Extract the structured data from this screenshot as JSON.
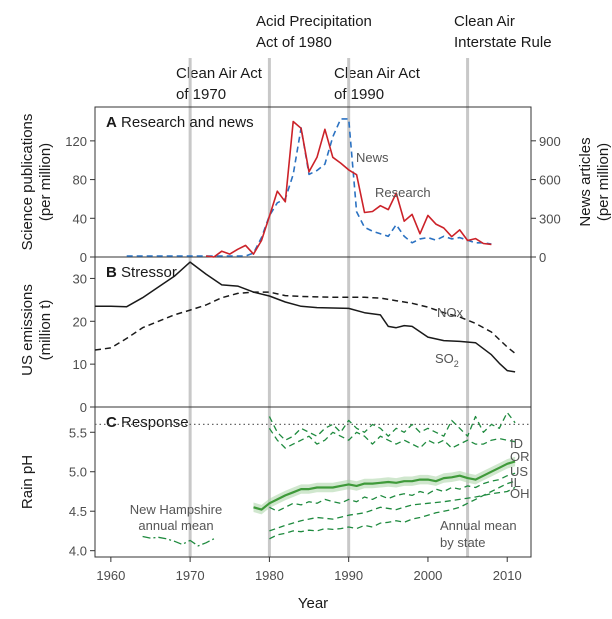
{
  "chart_data": [
    {
      "panel": "A",
      "type": "line",
      "title_letter": "A",
      "title": "Research and news",
      "ylabel": "Science publications (per million)",
      "ylabel_lines": [
        "Science publications",
        "(per million)"
      ],
      "ylabel_right": "News articles (per million)",
      "ylabel_right_lines": [
        "News articles",
        "(per million)"
      ],
      "ylim": [
        0,
        155
      ],
      "yticks": [
        0,
        40,
        80,
        120
      ],
      "ylim_right": [
        0,
        1162
      ],
      "yticks_right": [
        0,
        300,
        600,
        900
      ],
      "series": [
        {
          "name": "Research",
          "axis": "left",
          "color": "#cc2229",
          "style": "solid",
          "x": [
            1972,
            1973,
            1974,
            1975,
            1976,
            1977,
            1978,
            1979,
            1980,
            1981,
            1982,
            1983,
            1984,
            1985,
            1986,
            1987,
            1988,
            1989,
            1990,
            1991,
            1992,
            1993,
            1994,
            1995,
            1996,
            1997,
            1998,
            1999,
            2000,
            2001,
            2002,
            2003,
            2004,
            2005,
            2006,
            2007,
            2008
          ],
          "y": [
            1,
            0,
            6,
            3,
            8,
            12,
            3,
            17,
            42,
            68,
            57,
            140,
            133,
            88,
            103,
            132,
            103,
            97,
            90,
            85,
            46,
            47,
            53,
            49,
            66,
            37,
            44,
            24,
            43,
            34,
            30,
            21,
            28,
            17,
            19,
            14,
            13
          ]
        },
        {
          "name": "News",
          "axis": "right",
          "color": "#2b72c2",
          "style": "dashed",
          "x": [
            1962,
            1964,
            1966,
            1968,
            1970,
            1972,
            1974,
            1975,
            1976,
            1977,
            1978,
            1979,
            1980,
            1981,
            1982,
            1983,
            1984,
            1985,
            1986,
            1987,
            1988,
            1989,
            1990,
            1991,
            1992,
            1993,
            1994,
            1995,
            1996,
            1997,
            1998,
            1999,
            2000,
            2001,
            2002,
            2003,
            2004,
            2005,
            2006,
            2007,
            2008
          ],
          "y": [
            8,
            8,
            8,
            8,
            8,
            8,
            8,
            8,
            8,
            8,
            30,
            150,
            320,
            420,
            450,
            640,
            1000,
            640,
            670,
            720,
            930,
            1070,
            1070,
            350,
            230,
            200,
            180,
            160,
            250,
            160,
            110,
            140,
            150,
            130,
            160,
            140,
            150,
            130,
            110,
            110,
            100
          ]
        }
      ],
      "annotations": [
        "News",
        "Research"
      ]
    },
    {
      "panel": "B",
      "type": "line",
      "title_letter": "B",
      "title": "Stressor",
      "ylabel": "US emissions (million t)",
      "ylabel_lines": [
        "US emissions",
        "(million t)"
      ],
      "ylim": [
        0,
        35
      ],
      "yticks": [
        0,
        10,
        20,
        30
      ],
      "series": [
        {
          "name": "SO2",
          "label_main": "SO",
          "label_sub": "2",
          "color": "#1a1a1a",
          "style": "solid",
          "x": [
            1958,
            1960,
            1962,
            1964,
            1966,
            1968,
            1970,
            1972,
            1974,
            1976,
            1978,
            1980,
            1982,
            1984,
            1986,
            1988,
            1990,
            1992,
            1994,
            1995,
            1996,
            1997,
            1998,
            2000,
            2002,
            2004,
            2006,
            2008,
            2009,
            2010,
            2011
          ],
          "y": [
            23.5,
            23.5,
            23.4,
            25.5,
            28,
            30.5,
            33.8,
            31,
            28.5,
            28.2,
            26.8,
            25.9,
            24.5,
            23.5,
            23.2,
            23.1,
            23,
            22,
            21.5,
            18.8,
            18.5,
            19,
            18.8,
            16.3,
            15.5,
            15.3,
            15,
            12.2,
            10.2,
            8.5,
            8.2
          ]
        },
        {
          "name": "NOx",
          "label_main": "NOx",
          "label_sub": "",
          "color": "#1a1a1a",
          "style": "dashed",
          "x": [
            1958,
            1960,
            1962,
            1964,
            1966,
            1968,
            1970,
            1972,
            1974,
            1976,
            1978,
            1980,
            1982,
            1984,
            1986,
            1988,
            1990,
            1992,
            1994,
            1996,
            1998,
            2000,
            2002,
            2004,
            2006,
            2008,
            2010,
            2011
          ],
          "y": [
            13.3,
            13.8,
            16,
            18.5,
            20,
            21.5,
            22.6,
            23.8,
            25.5,
            26.5,
            26.8,
            26.8,
            26,
            25.8,
            25.7,
            25.6,
            25.6,
            25.6,
            25.4,
            24.8,
            24.2,
            23.3,
            22,
            21,
            19.5,
            17.5,
            14,
            12.5
          ]
        }
      ]
    },
    {
      "panel": "C",
      "type": "line",
      "title_letter": "C",
      "title": "Response",
      "ylabel": "Rain pH",
      "ylim": [
        3.92,
        5.82
      ],
      "yticks": [
        "4.0",
        "4.5",
        "5.0",
        "5.5"
      ],
      "xlabel": "Year",
      "xticks": [
        1960,
        1970,
        1980,
        1990,
        2000,
        2010
      ],
      "xlim": [
        1958,
        2013
      ],
      "reference_line_pH": 5.6,
      "series": [
        {
          "name": "New Hampshire annual mean",
          "color": "#1e8a3e",
          "style": "dashdot",
          "x": [
            1964,
            1965,
            1966,
            1967,
            1968,
            1969,
            1970,
            1971,
            1972,
            1973
          ],
          "y": [
            4.18,
            4.16,
            4.17,
            4.15,
            4.12,
            4.08,
            4.13,
            4.06,
            4.1,
            4.15
          ]
        },
        {
          "name": "US",
          "color": "#3f9a3a",
          "style": "solid",
          "x": [
            1978,
            1979,
            1980,
            1981,
            1982,
            1983,
            1984,
            1985,
            1986,
            1987,
            1988,
            1989,
            1990,
            1991,
            1992,
            1993,
            1994,
            1995,
            1996,
            1997,
            1998,
            1999,
            2000,
            2001,
            2002,
            2003,
            2004,
            2005,
            2006,
            2007,
            2008,
            2009,
            2010,
            2011
          ],
          "y": [
            4.55,
            4.52,
            4.6,
            4.65,
            4.7,
            4.74,
            4.78,
            4.78,
            4.8,
            4.8,
            4.8,
            4.82,
            4.84,
            4.82,
            4.85,
            4.85,
            4.86,
            4.87,
            4.86,
            4.88,
            4.88,
            4.9,
            4.9,
            4.88,
            4.92,
            4.93,
            4.95,
            4.92,
            4.9,
            4.95,
            5.0,
            5.05,
            5.1,
            5.13
          ]
        },
        {
          "name": "ID",
          "color": "#1e8a3e",
          "style": "dashed",
          "x": [
            1980,
            1981,
            1982,
            1983,
            1984,
            1985,
            1986,
            1987,
            1988,
            1989,
            1990,
            1991,
            1992,
            1993,
            1994,
            1995,
            1996,
            1997,
            1998,
            1999,
            2000,
            2001,
            2002,
            2003,
            2004,
            2005,
            2006,
            2007,
            2008,
            2009,
            2010,
            2011
          ],
          "y": [
            5.7,
            5.5,
            5.4,
            5.45,
            5.55,
            5.5,
            5.45,
            5.55,
            5.6,
            5.5,
            5.65,
            5.55,
            5.5,
            5.6,
            5.55,
            5.45,
            5.55,
            5.5,
            5.6,
            5.5,
            5.55,
            5.5,
            5.45,
            5.65,
            5.55,
            5.45,
            5.7,
            5.5,
            5.6,
            5.55,
            5.75,
            5.62
          ]
        },
        {
          "name": "OR",
          "color": "#1e8a3e",
          "style": "dashed",
          "x": [
            1980,
            1981,
            1982,
            1983,
            1984,
            1985,
            1986,
            1987,
            1988,
            1989,
            1990,
            1991,
            1992,
            1993,
            1994,
            1995,
            1996,
            1997,
            1998,
            1999,
            2000,
            2001,
            2002,
            2003,
            2004,
            2005,
            2006,
            2007,
            2008,
            2009,
            2010,
            2011
          ],
          "y": [
            5.55,
            5.4,
            5.3,
            5.35,
            5.4,
            5.45,
            5.35,
            5.4,
            5.5,
            5.45,
            5.4,
            5.5,
            5.45,
            5.35,
            5.45,
            5.4,
            5.35,
            5.4,
            5.35,
            5.3,
            5.4,
            5.35,
            5.4,
            5.3,
            5.35,
            5.4,
            5.35,
            5.35,
            5.4,
            5.42,
            5.4,
            5.38
          ]
        },
        {
          "name": "IL",
          "color": "#1e8a3e",
          "style": "dashed",
          "x": [
            1980,
            1981,
            1982,
            1983,
            1984,
            1985,
            1986,
            1987,
            1988,
            1989,
            1990,
            1991,
            1992,
            1993,
            1994,
            1995,
            1996,
            1997,
            1998,
            1999,
            2000,
            2001,
            2002,
            2003,
            2004,
            2005,
            2006,
            2007,
            2008,
            2009,
            2010,
            2011
          ],
          "y": [
            4.55,
            4.5,
            4.55,
            4.6,
            4.58,
            4.62,
            4.6,
            4.65,
            4.62,
            4.6,
            4.65,
            4.62,
            4.68,
            4.65,
            4.7,
            4.66,
            4.7,
            4.72,
            4.7,
            4.75,
            4.72,
            4.78,
            4.75,
            4.8,
            4.78,
            4.82,
            4.8,
            4.85,
            4.88,
            4.9,
            4.95,
            4.98
          ]
        },
        {
          "name": "OH",
          "color": "#1e8a3e",
          "style": "dashed",
          "x": [
            1980,
            1981,
            1982,
            1983,
            1984,
            1985,
            1986,
            1987,
            1988,
            1989,
            1990,
            1991,
            1992,
            1993,
            1994,
            1995,
            1996,
            1997,
            1998,
            1999,
            2000,
            2001,
            2002,
            2003,
            2004,
            2005,
            2006,
            2007,
            2008,
            2009,
            2010,
            2011
          ],
          "y": [
            4.15,
            4.2,
            4.22,
            4.25,
            4.24,
            4.26,
            4.25,
            4.28,
            4.27,
            4.28,
            4.3,
            4.28,
            4.32,
            4.3,
            4.35,
            4.36,
            4.38,
            4.36,
            4.4,
            4.42,
            4.45,
            4.48,
            4.5,
            4.52,
            4.55,
            4.6,
            4.65,
            4.7,
            4.75,
            4.8,
            4.85,
            4.88
          ]
        },
        {
          "name": "state-extra-1",
          "color": "#1e8a3e",
          "style": "dashed",
          "x": [
            1980,
            1982,
            1984,
            1986,
            1988,
            1990,
            1992,
            1994,
            1996,
            1998,
            2000,
            2002,
            2004,
            2006,
            2008,
            2010,
            2011
          ],
          "y": [
            4.25,
            4.32,
            4.38,
            4.42,
            4.4,
            4.45,
            4.48,
            4.55,
            4.52,
            4.58,
            4.6,
            4.62,
            4.65,
            4.68,
            4.72,
            4.75,
            4.8
          ]
        }
      ],
      "band_label": "Annual mean by state",
      "annotations": [
        "New Hampshire annual mean",
        "Annual mean by state"
      ]
    }
  ],
  "events": [
    {
      "year": 1970,
      "lines": [
        "Clean Air Act",
        "of 1970"
      ]
    },
    {
      "year": 1980,
      "lines": [
        "Acid Precipitation",
        "Act of 1980"
      ]
    },
    {
      "year": 1990,
      "lines": [
        "Clean Air Act",
        "of 1990"
      ]
    },
    {
      "year": 2005,
      "lines": [
        "Clean Air",
        "Interstate Rule"
      ]
    }
  ],
  "colors": {
    "research": "#cc2229",
    "news": "#2b72c2",
    "emissions": "#1a1a1a",
    "response": "#1e8a3e",
    "us_band": "#a9d4a5",
    "event_line": "#c8c8c8"
  }
}
